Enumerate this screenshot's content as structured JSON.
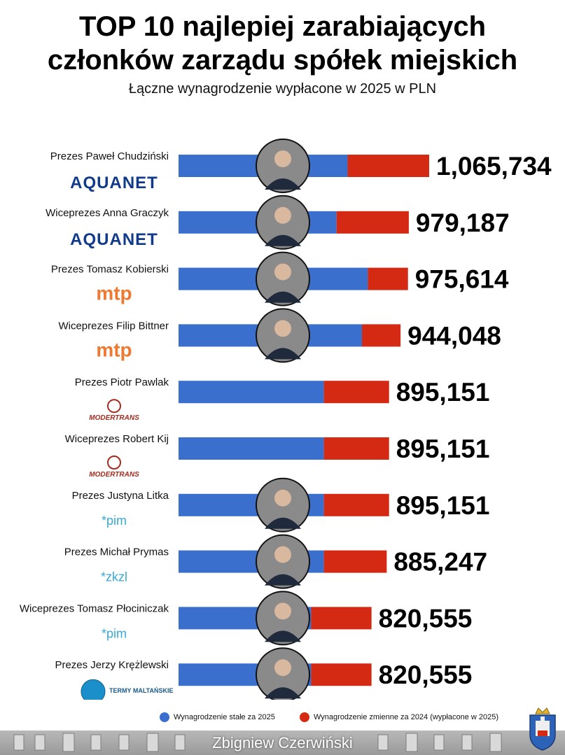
{
  "header": {
    "title_line1": "TOP 10 najlepiej zarabiających",
    "title_line2": "członków zarządu spółek miejskich",
    "subtitle": "Łączne wynagrodzenie wypłacone w 2025 w PLN"
  },
  "colors": {
    "fixed": "#3a6fce",
    "variable": "#d42a14"
  },
  "legend": {
    "fixed_label": "Wynagrodzenie stałe za 2025",
    "variable_label": "Wynagrodzenie zmienne za 2024 (wypłacone w 2025)"
  },
  "footer": {
    "author": "Zbigniew Czerwiński"
  },
  "chart_data": {
    "type": "bar",
    "orientation": "horizontal",
    "stacked": true,
    "title": "TOP 10 najlepiej zarabiających członków zarządu spółek miejskich",
    "subtitle": "Łączne wynagrodzenie wypłacone w 2025 w PLN",
    "categories": [
      "Prezes Paweł Chudziński",
      "Wiceprezes Anna Graczyk",
      "Prezes Tomasz Kobierski",
      "Wiceprezes Filip Bittner",
      "Prezes Piotr Pawlak",
      "Wiceprezes Robert Kij",
      "Prezes Justyna Litka",
      "Prezes Michał Prymas",
      "Wiceprezes Tomasz Płociniczak",
      "Prezes Jerzy Krężlewski"
    ],
    "companies": [
      "AQUANET",
      "AQUANET",
      "mtp",
      "mtp",
      "MODERTRANS",
      "MODERTRANS",
      "*pim",
      "*zkzl",
      "*pim",
      "TERMY MALTAŃSKIE"
    ],
    "totals_display": [
      "1,065,734",
      "979,187",
      "975,614",
      "944,048",
      "895,151",
      "895,151",
      "895,151",
      "885,247",
      "820,555",
      "820,555"
    ],
    "totals": [
      1065734,
      979187,
      975614,
      944048,
      895151,
      895151,
      895151,
      885247,
      820555,
      820555
    ],
    "series": [
      {
        "name": "Wynagrodzenie stałe za 2025",
        "values": [
          719000,
          672000,
          805000,
          780000,
          618000,
          618000,
          618000,
          618000,
          564000,
          564000
        ]
      },
      {
        "name": "Wynagrodzenie zmienne za 2024 (wypłacone w 2025)",
        "values": [
          346734,
          307187,
          170614,
          164048,
          277151,
          277151,
          277151,
          267247,
          256555,
          256555
        ]
      }
    ],
    "xlim": [
      0,
      1065734
    ],
    "legend_position": "bottom"
  }
}
